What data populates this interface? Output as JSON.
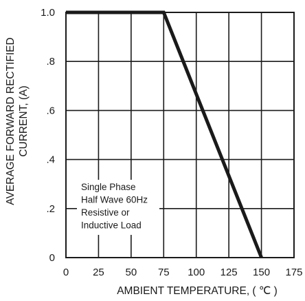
{
  "chart_data": {
    "type": "line",
    "title": "",
    "xlabel": "AMBIENT TEMPERATURE, ( ℃ )",
    "ylabel_lines": [
      "AVERAGE FORWARD RECTIFIED",
      "CURRENT, (A)"
    ],
    "xlim": [
      0,
      175
    ],
    "ylim": [
      0,
      1.0
    ],
    "x_ticks": [
      0,
      25,
      50,
      75,
      100,
      125,
      150,
      175
    ],
    "x_tick_labels": [
      "0",
      "25",
      "50",
      "75",
      "100",
      "125",
      "150",
      "175"
    ],
    "y_ticks": [
      0,
      0.2,
      0.4,
      0.6,
      0.8,
      1.0
    ],
    "y_tick_labels": [
      "0",
      ".2",
      ".4",
      ".6",
      ".8",
      "1.0"
    ],
    "grid": true,
    "series": [
      {
        "x": [
          0,
          75,
          150
        ],
        "y": [
          1.0,
          1.0,
          0.0
        ]
      }
    ],
    "annotation_lines": [
      "Single Phase",
      "Half Wave 60Hz",
      "Resistive or",
      "Inductive Load"
    ],
    "colors": {
      "line": "#1a1a1a",
      "grid": "#1a1a1a",
      "background": "#ffffff"
    }
  }
}
